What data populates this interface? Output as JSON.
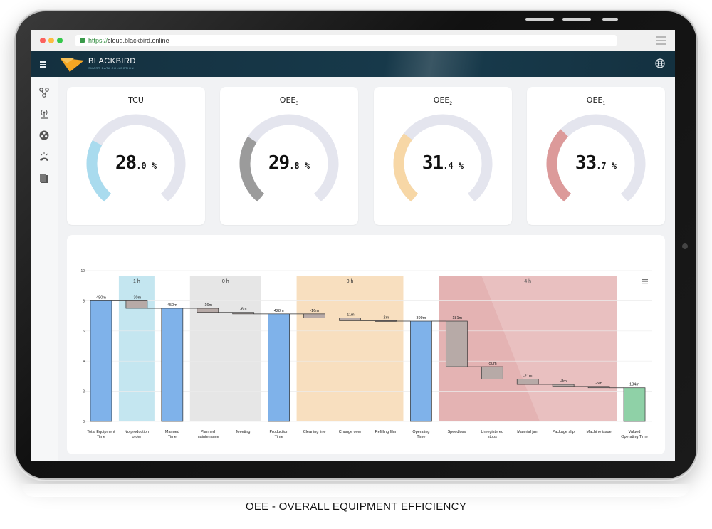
{
  "browser": {
    "url_https": "https://",
    "url_host": "cloud.blackbird.online"
  },
  "app": {
    "brand": "BLACKBIRD",
    "brand_sub": "SMART DATA COLLECTION",
    "accent": "#f5a623"
  },
  "sidebar": {
    "icons": [
      "network-icon",
      "antenna-icon",
      "radiation-icon",
      "phone-alarm-icon",
      "document-icon"
    ]
  },
  "gauges": [
    {
      "title": "TCU",
      "sub": "",
      "int": "28",
      "dec": ".0",
      "unit": " %",
      "fraction": 0.28,
      "color": "#a9dbee"
    },
    {
      "title": "OEE",
      "sub": "3",
      "int": "29",
      "dec": ".8",
      "unit": " %",
      "fraction": 0.298,
      "color": "#9b9b9b"
    },
    {
      "title": "OEE",
      "sub": "2",
      "int": "31",
      "dec": ".4",
      "unit": " %",
      "fraction": 0.314,
      "color": "#f7d7a6"
    },
    {
      "title": "OEE",
      "sub": "1",
      "int": "33",
      "dec": ".7",
      "unit": " %",
      "fraction": 0.337,
      "color": "#dc9a9a"
    }
  ],
  "chart_data": {
    "type": "bar",
    "title": "",
    "ylim": [
      0,
      10
    ],
    "yticks": [
      "0",
      "2",
      "4",
      "6",
      "8",
      "10"
    ],
    "categories": [
      [
        "Total Equipment",
        "Time"
      ],
      [
        "No production",
        "order"
      ],
      [
        "Manned",
        "Time"
      ],
      [
        "Planned",
        "maintenance"
      ],
      [
        "Meeting"
      ],
      [
        "Production",
        "Time"
      ],
      [
        "Cleaning line"
      ],
      [
        "Change over"
      ],
      [
        "Refilling film"
      ],
      [
        "Operating",
        "Time"
      ],
      [
        "Speedloss"
      ],
      [
        "Unregistered",
        "stops"
      ],
      [
        "Material jam"
      ],
      [
        "Package slip"
      ],
      [
        "Machine issue"
      ],
      [
        "Valued",
        "Operating Time"
      ]
    ],
    "bars": [
      {
        "kind": "total",
        "bottom": 0,
        "top": 8.0,
        "label": "480m"
      },
      {
        "kind": "loss",
        "bottom": 7.5,
        "top": 8.0,
        "label": "-30m"
      },
      {
        "kind": "total",
        "bottom": 0,
        "top": 7.5,
        "label": "450m"
      },
      {
        "kind": "loss",
        "bottom": 7.23,
        "top": 7.5,
        "label": "-16m"
      },
      {
        "kind": "loss",
        "bottom": 7.13,
        "top": 7.23,
        "label": "-6m"
      },
      {
        "kind": "total",
        "bottom": 0,
        "top": 7.13,
        "label": "428m"
      },
      {
        "kind": "loss",
        "bottom": 6.87,
        "top": 7.13,
        "label": "-16m"
      },
      {
        "kind": "loss",
        "bottom": 6.68,
        "top": 6.87,
        "label": "-11m"
      },
      {
        "kind": "loss",
        "bottom": 6.65,
        "top": 6.68,
        "label": "-2m"
      },
      {
        "kind": "total",
        "bottom": 0,
        "top": 6.65,
        "label": "399m"
      },
      {
        "kind": "loss",
        "bottom": 3.63,
        "top": 6.65,
        "label": "-181m"
      },
      {
        "kind": "loss",
        "bottom": 2.8,
        "top": 3.63,
        "label": "-50m"
      },
      {
        "kind": "loss",
        "bottom": 2.45,
        "top": 2.8,
        "label": "-21m"
      },
      {
        "kind": "loss",
        "bottom": 2.32,
        "top": 2.45,
        "label": "-8m"
      },
      {
        "kind": "loss",
        "bottom": 2.23,
        "top": 2.32,
        "label": "-5m"
      },
      {
        "kind": "final",
        "bottom": 0,
        "top": 2.23,
        "label": "134m"
      }
    ],
    "bands": [
      {
        "from": 1,
        "to": 1,
        "label": "1 h",
        "color": "#c4e6f0"
      },
      {
        "from": 3,
        "to": 4,
        "label": "0 h",
        "color": "#e6e6e6"
      },
      {
        "from": 6,
        "to": 8,
        "label": "0 h",
        "color": "#f8dfbf"
      },
      {
        "from": 10,
        "to": 14,
        "label": "4 h",
        "color": "#e4b3b3"
      }
    ],
    "colors": {
      "total": "#7fb2ea",
      "loss": "#b7aaa7",
      "final": "#8fd1a7"
    }
  },
  "caption": "OEE - OVERALL EQUIPMENT EFFICIENCY"
}
